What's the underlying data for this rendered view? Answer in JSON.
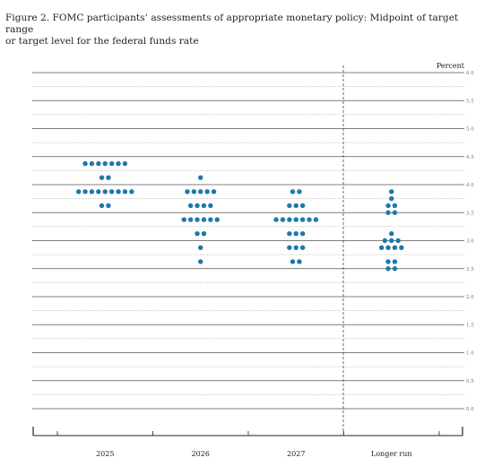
{
  "figure": {
    "title_line1": "Figure 2.  FOMC participants’ assessments of appropriate monetary policy: Midpoint of target range",
    "title_line2": "or target level for the federal funds rate"
  },
  "chart_data": {
    "type": "scatter",
    "ylabel": "Percent",
    "ylim": [
      0,
      6
    ],
    "yticks": [
      "0.0",
      "0.5",
      "1.0",
      "1.5",
      "2.0",
      "2.5",
      "3.0",
      "3.5",
      "4.0",
      "4.5",
      "5.0",
      "5.5",
      "6.0"
    ],
    "categories": [
      "2025",
      "2026",
      "2027",
      "Longer run"
    ],
    "series_color": "#1f78a8",
    "dot_counts": [
      {
        "category": "2025",
        "levels": [
          {
            "rate": 4.375,
            "count": 7
          },
          {
            "rate": 4.125,
            "count": 2
          },
          {
            "rate": 3.875,
            "count": 9
          },
          {
            "rate": 3.625,
            "count": 2
          }
        ]
      },
      {
        "category": "2026",
        "levels": [
          {
            "rate": 4.125,
            "count": 1
          },
          {
            "rate": 3.875,
            "count": 5
          },
          {
            "rate": 3.625,
            "count": 4
          },
          {
            "rate": 3.375,
            "count": 6
          },
          {
            "rate": 3.125,
            "count": 2
          },
          {
            "rate": 2.875,
            "count": 1
          },
          {
            "rate": 2.625,
            "count": 1
          }
        ]
      },
      {
        "category": "2027",
        "levels": [
          {
            "rate": 3.875,
            "count": 2
          },
          {
            "rate": 3.625,
            "count": 3
          },
          {
            "rate": 3.375,
            "count": 7
          },
          {
            "rate": 3.125,
            "count": 3
          },
          {
            "rate": 2.875,
            "count": 3
          },
          {
            "rate": 2.625,
            "count": 2
          }
        ]
      },
      {
        "category": "Longer run",
        "levels": [
          {
            "rate": 3.875,
            "count": 1
          },
          {
            "rate": 3.75,
            "count": 1
          },
          {
            "rate": 3.625,
            "count": 2
          },
          {
            "rate": 3.5,
            "count": 2
          },
          {
            "rate": 3.125,
            "count": 1
          },
          {
            "rate": 3.0,
            "count": 3
          },
          {
            "rate": 2.875,
            "count": 4
          },
          {
            "rate": 2.625,
            "count": 2
          },
          {
            "rate": 2.5,
            "count": 2
          }
        ]
      }
    ]
  }
}
